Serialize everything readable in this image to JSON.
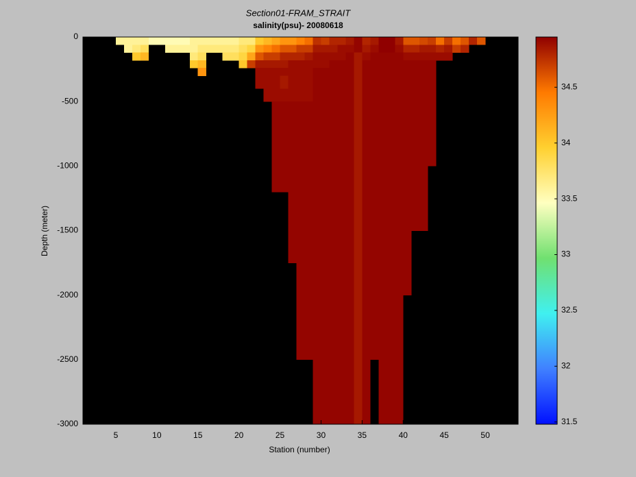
{
  "chart_data": {
    "type": "heatmap",
    "title": "Section01-FRAM_STRAIT",
    "subtitle": "salinity(psu)- 20080618",
    "xlabel": "Station (number)",
    "ylabel": "Depth (meter)",
    "x": [
      5,
      6,
      7,
      8,
      9,
      10,
      11,
      12,
      13,
      14,
      15,
      16,
      17,
      18,
      19,
      20,
      21,
      22,
      23,
      24,
      25,
      26,
      27,
      28,
      29,
      30,
      31,
      32,
      33,
      34,
      35,
      36,
      37,
      38,
      39,
      40,
      41,
      42,
      43,
      44,
      45,
      46,
      47,
      48,
      49
    ],
    "depth_edges": [
      0,
      -60,
      -120,
      -180,
      -240,
      -300,
      -400,
      -500,
      -1000,
      -1200,
      -1500,
      -1750,
      -2000,
      -2500,
      -3000
    ],
    "values": [
      [
        33.6,
        null,
        null,
        null,
        null,
        null,
        null,
        null,
        null,
        null,
        null,
        null,
        null,
        null
      ],
      [
        33.6,
        33.6,
        null,
        null,
        null,
        null,
        null,
        null,
        null,
        null,
        null,
        null,
        null,
        null
      ],
      [
        33.6,
        33.7,
        34.0,
        null,
        null,
        null,
        null,
        null,
        null,
        null,
        null,
        null,
        null,
        null
      ],
      [
        33.6,
        33.8,
        34.1,
        null,
        null,
        null,
        null,
        null,
        null,
        null,
        null,
        null,
        null,
        null
      ],
      [
        33.5,
        null,
        null,
        null,
        null,
        null,
        null,
        null,
        null,
        null,
        null,
        null,
        null,
        null
      ],
      [
        33.5,
        null,
        null,
        null,
        null,
        null,
        null,
        null,
        null,
        null,
        null,
        null,
        null,
        null
      ],
      [
        33.5,
        33.6,
        null,
        null,
        null,
        null,
        null,
        null,
        null,
        null,
        null,
        null,
        null,
        null
      ],
      [
        33.5,
        33.6,
        null,
        null,
        null,
        null,
        null,
        null,
        null,
        null,
        null,
        null,
        null,
        null
      ],
      [
        33.5,
        33.6,
        null,
        null,
        null,
        null,
        null,
        null,
        null,
        null,
        null,
        null,
        null,
        null
      ],
      [
        33.6,
        33.6,
        33.7,
        34.0,
        null,
        null,
        null,
        null,
        null,
        null,
        null,
        null,
        null,
        null
      ],
      [
        33.6,
        33.7,
        33.8,
        34.1,
        34.3,
        null,
        null,
        null,
        null,
        null,
        null,
        null,
        null,
        null
      ],
      [
        33.6,
        33.7,
        null,
        null,
        null,
        null,
        null,
        null,
        null,
        null,
        null,
        null,
        null,
        null
      ],
      [
        33.6,
        33.7,
        null,
        null,
        null,
        null,
        null,
        null,
        null,
        null,
        null,
        null,
        null,
        null
      ],
      [
        33.6,
        33.7,
        33.8,
        null,
        null,
        null,
        null,
        null,
        null,
        null,
        null,
        null,
        null,
        null
      ],
      [
        33.6,
        33.7,
        33.8,
        null,
        null,
        null,
        null,
        null,
        null,
        null,
        null,
        null,
        null,
        null
      ],
      [
        33.7,
        33.8,
        33.9,
        34.0,
        null,
        null,
        null,
        null,
        null,
        null,
        null,
        null,
        null,
        null
      ],
      [
        33.7,
        33.9,
        34.2,
        34.7,
        null,
        null,
        null,
        null,
        null,
        null,
        null,
        null,
        null,
        null
      ],
      [
        34.0,
        34.3,
        34.6,
        34.85,
        34.9,
        34.9,
        null,
        null,
        null,
        null,
        null,
        null,
        null,
        null
      ],
      [
        34.1,
        34.4,
        34.7,
        34.85,
        34.9,
        34.9,
        34.9,
        null,
        null,
        null,
        null,
        null,
        null,
        null
      ],
      [
        34.2,
        34.5,
        34.7,
        34.85,
        34.9,
        34.9,
        34.9,
        34.93,
        34.93,
        null,
        null,
        null,
        null,
        null
      ],
      [
        34.3,
        34.6,
        34.8,
        34.85,
        34.9,
        34.85,
        34.9,
        34.93,
        34.93,
        null,
        null,
        null,
        null,
        null
      ],
      [
        34.3,
        34.6,
        34.8,
        34.9,
        34.9,
        34.9,
        34.9,
        34.93,
        34.93,
        34.93,
        34.93,
        null,
        null,
        null
      ],
      [
        34.4,
        34.7,
        34.8,
        34.9,
        34.9,
        34.9,
        34.9,
        34.93,
        34.93,
        34.93,
        34.93,
        34.93,
        34.93,
        null
      ],
      [
        34.5,
        34.7,
        34.85,
        34.9,
        34.9,
        34.9,
        34.9,
        34.93,
        34.93,
        34.93,
        34.93,
        34.93,
        34.93,
        null
      ],
      [
        34.75,
        34.85,
        34.9,
        34.9,
        34.93,
        34.93,
        34.93,
        34.93,
        34.93,
        34.93,
        34.93,
        34.93,
        34.93,
        34.93
      ],
      [
        34.7,
        34.85,
        34.9,
        34.9,
        34.93,
        34.93,
        34.93,
        34.93,
        34.93,
        34.93,
        34.93,
        34.93,
        34.93,
        34.93
      ],
      [
        34.8,
        34.85,
        34.9,
        34.93,
        34.93,
        34.93,
        34.93,
        34.93,
        34.93,
        34.93,
        34.93,
        34.93,
        34.93,
        34.93
      ],
      [
        34.8,
        34.9,
        34.9,
        34.93,
        34.93,
        34.93,
        34.93,
        34.93,
        34.93,
        34.93,
        34.93,
        34.93,
        34.93,
        34.93
      ],
      [
        34.85,
        34.9,
        34.93,
        34.93,
        34.93,
        34.93,
        34.93,
        34.93,
        34.93,
        34.93,
        34.93,
        34.93,
        34.93,
        34.93
      ],
      [
        34.93,
        34.93,
        34.85,
        34.85,
        34.85,
        34.85,
        34.85,
        34.85,
        34.85,
        34.85,
        34.85,
        34.85,
        34.85,
        34.85
      ],
      [
        34.8,
        34.85,
        34.9,
        34.93,
        34.93,
        34.93,
        34.93,
        34.93,
        34.93,
        34.93,
        34.93,
        34.93,
        34.93,
        34.93
      ],
      [
        34.85,
        34.9,
        34.93,
        34.93,
        34.93,
        34.93,
        34.93,
        34.93,
        34.93,
        34.93,
        34.93,
        34.93,
        34.93,
        null
      ],
      [
        34.95,
        34.95,
        34.93,
        34.93,
        34.93,
        34.93,
        34.93,
        34.93,
        34.93,
        34.93,
        34.93,
        34.93,
        34.93,
        34.93
      ],
      [
        34.95,
        34.95,
        34.93,
        34.93,
        34.93,
        34.93,
        34.93,
        34.93,
        34.93,
        34.93,
        34.93,
        34.93,
        34.93,
        34.93
      ],
      [
        34.85,
        34.9,
        34.93,
        34.93,
        34.93,
        34.93,
        34.93,
        34.93,
        34.93,
        34.93,
        34.93,
        34.93,
        34.93,
        34.93
      ],
      [
        34.6,
        34.8,
        34.9,
        34.93,
        34.93,
        34.93,
        34.93,
        34.93,
        34.93,
        34.93,
        34.93,
        34.93,
        null,
        null
      ],
      [
        34.6,
        34.8,
        34.9,
        34.93,
        34.93,
        34.93,
        34.93,
        34.93,
        34.93,
        34.93,
        null,
        null,
        null,
        null
      ],
      [
        34.65,
        34.85,
        34.9,
        34.93,
        34.93,
        34.93,
        34.93,
        34.93,
        34.93,
        34.93,
        null,
        null,
        null,
        null
      ],
      [
        34.7,
        34.85,
        34.9,
        34.93,
        34.93,
        34.93,
        34.93,
        34.93,
        null,
        null,
        null,
        null,
        null,
        null
      ],
      [
        34.5,
        34.8,
        34.9,
        null,
        null,
        null,
        null,
        null,
        null,
        null,
        null,
        null,
        null,
        null
      ],
      [
        34.7,
        34.85,
        34.9,
        null,
        null,
        null,
        null,
        null,
        null,
        null,
        null,
        null,
        null,
        null
      ],
      [
        34.5,
        34.7,
        null,
        null,
        null,
        null,
        null,
        null,
        null,
        null,
        null,
        null,
        null,
        null
      ],
      [
        34.6,
        34.8,
        null,
        null,
        null,
        null,
        null,
        null,
        null,
        null,
        null,
        null,
        null,
        null
      ],
      [
        34.8,
        null,
        null,
        null,
        null,
        null,
        null,
        null,
        null,
        null,
        null,
        null,
        null,
        null
      ],
      [
        34.6,
        null,
        null,
        null,
        null,
        null,
        null,
        null,
        null,
        null,
        null,
        null,
        null,
        null
      ]
    ],
    "xlim": [
      1,
      54
    ],
    "ylim": [
      -3000,
      0
    ],
    "xticks": [
      5,
      10,
      15,
      20,
      25,
      30,
      35,
      40,
      45,
      50
    ],
    "yticks": [
      0,
      -500,
      -1000,
      -1500,
      -2000,
      -2500,
      -3000
    ],
    "clim": [
      31.48,
      34.95
    ],
    "cticks": [
      31.5,
      32,
      32.5,
      33,
      33.5,
      34,
      34.5
    ],
    "colormap": [
      "#0010ff",
      "#4080ff",
      "#40f0f0",
      "#70e070",
      "#ffffc0",
      "#ffd030",
      "#ff7a00",
      "#900000"
    ],
    "background": "#000000"
  }
}
